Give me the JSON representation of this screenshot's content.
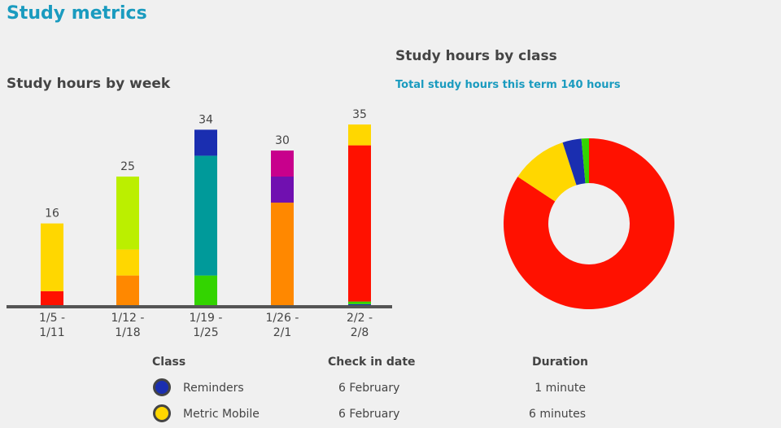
{
  "header": {
    "title": "Study metrics"
  },
  "chart_data": [
    {
      "type": "bar",
      "title": "Study hours by week",
      "categories": [
        "1/5 - 1/11",
        "1/12 - 1/18",
        "1/19 - 1/25",
        "1/26 - 2/1",
        "2/2 - 2/8"
      ],
      "totals": [
        16,
        25,
        34,
        30,
        35
      ],
      "segments": [
        [
          {
            "color": "#ff1100",
            "value": 3
          },
          {
            "color": "#ffd700",
            "value": 13
          }
        ],
        [
          {
            "color": "#ff8800",
            "value": 6
          },
          {
            "color": "#ffd700",
            "value": 5
          },
          {
            "color": "#bbef00",
            "value": 14
          }
        ],
        [
          {
            "color": "#33d400",
            "value": 6
          },
          {
            "color": "#009a9a",
            "value": 23
          },
          {
            "color": "#1a2eb0",
            "value": 5
          }
        ],
        [
          {
            "color": "#ff8800",
            "value": 20
          },
          {
            "color": "#7010b0",
            "value": 5
          },
          {
            "color": "#c8008c",
            "value": 5
          }
        ],
        [
          {
            "color": "#1a2eb0",
            "value": 0.5
          },
          {
            "color": "#33d400",
            "value": 0.5
          },
          {
            "color": "#ff1100",
            "value": 30
          },
          {
            "color": "#ffd700",
            "value": 4
          }
        ]
      ]
    },
    {
      "type": "pie",
      "title": "Study hours by class",
      "subtitle": "Total study hours this term",
      "total": 140,
      "total_unit": "hours",
      "values": [
        118,
        15,
        5,
        2
      ],
      "colors": [
        "#ff1100",
        "#ffd700",
        "#1a2eb0",
        "#33d400"
      ]
    }
  ],
  "table": {
    "columns": [
      "Class",
      "Check in date",
      "Duration"
    ],
    "rows": [
      {
        "color": "#1a2eb0",
        "cells": [
          "Reminders",
          "6 February",
          "1 minute"
        ]
      },
      {
        "color": "#ffd700",
        "cells": [
          "Metric Mobile",
          "6 February",
          "6 minutes"
        ]
      }
    ]
  }
}
